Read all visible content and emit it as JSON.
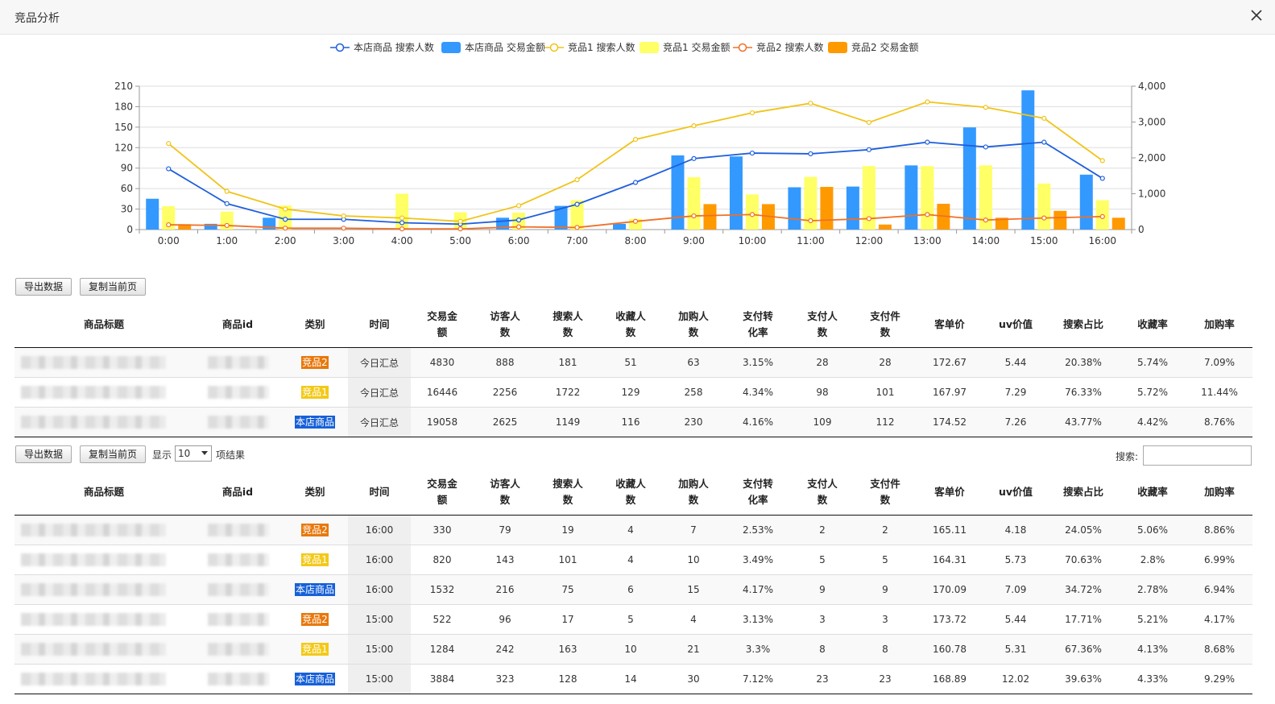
{
  "window": {
    "title": "竞品分析"
  },
  "legend": [
    {
      "label": "本店商品 搜索人数",
      "kind": "line",
      "color": "#1f5fdc"
    },
    {
      "label": "本店商品 交易金额",
      "kind": "bar",
      "color": "#3399ff"
    },
    {
      "label": "竞品1 搜索人数",
      "kind": "line",
      "color": "#f0c419"
    },
    {
      "label": "竞品1 交易金额",
      "kind": "bar",
      "color": "#ffff66"
    },
    {
      "label": "竞品2 搜索人数",
      "kind": "line",
      "color": "#f07028"
    },
    {
      "label": "竞品2 交易金额",
      "kind": "bar",
      "color": "#ff9900"
    }
  ],
  "chart_data": {
    "type": "bar",
    "categories": [
      "0:00",
      "1:00",
      "2:00",
      "3:00",
      "4:00",
      "5:00",
      "6:00",
      "7:00",
      "8:00",
      "9:00",
      "10:00",
      "11:00",
      "12:00",
      "13:00",
      "14:00",
      "15:00",
      "16:00"
    ],
    "left_axis": {
      "ticks": [
        "0",
        "30",
        "60",
        "90",
        "120",
        "150",
        "180",
        "210"
      ],
      "ylim": [
        0,
        210
      ]
    },
    "right_axis": {
      "ticks": [
        "0",
        "1,000",
        "2,000",
        "3,000",
        "4,000"
      ],
      "ylim": [
        0,
        4000
      ]
    },
    "grid": true,
    "legend_position": "top",
    "series": [
      {
        "name": "本店商品 交易金额",
        "kind": "bar",
        "axis": "right",
        "color": "#3399ff",
        "values": [
          860,
          160,
          330,
          0,
          0,
          0,
          330,
          660,
          160,
          2070,
          2040,
          1180,
          1200,
          1790,
          2850,
          3884,
          1532
        ]
      },
      {
        "name": "竞品1 交易金额",
        "kind": "bar",
        "axis": "right",
        "color": "#ffff66",
        "values": [
          650,
          500,
          670,
          0,
          1000,
          480,
          470,
          820,
          300,
          1460,
          980,
          1470,
          1770,
          1770,
          1790,
          1284,
          820
        ]
      },
      {
        "name": "竞品2 交易金额",
        "kind": "bar",
        "axis": "right",
        "color": "#ff9900",
        "values": [
          150,
          0,
          0,
          0,
          0,
          0,
          0,
          0,
          0,
          710,
          710,
          1190,
          140,
          720,
          330,
          522,
          330
        ]
      },
      {
        "name": "本店商品 搜索人数",
        "kind": "line",
        "axis": "left",
        "color": "#1f5fdc",
        "values": [
          89,
          38,
          15,
          15,
          10,
          8,
          14,
          37,
          69,
          104,
          112,
          111,
          117,
          128,
          121,
          128,
          75
        ]
      },
      {
        "name": "竞品1 搜索人数",
        "kind": "line",
        "axis": "left",
        "color": "#f0c419",
        "values": [
          126,
          56,
          30,
          20,
          17,
          12,
          35,
          73,
          132,
          152,
          171,
          185,
          157,
          187,
          179,
          163,
          101
        ]
      },
      {
        "name": "竞品2 搜索人数",
        "kind": "line",
        "axis": "left",
        "color": "#f07028",
        "values": [
          7,
          6,
          2,
          2,
          1,
          1,
          4,
          3,
          12,
          20,
          22,
          13,
          16,
          22,
          14,
          17,
          19
        ]
      }
    ]
  },
  "toolbar1": {
    "export_label": "导出数据",
    "copy_label": "复制当前页"
  },
  "toolbar2": {
    "export_label": "导出数据",
    "copy_label": "复制当前页",
    "show_label": "显示",
    "page_size": "10",
    "results_label": "项结果",
    "search_label": "搜索:"
  },
  "headers": [
    [
      "商品标题"
    ],
    [
      "商品id"
    ],
    [
      "类别"
    ],
    [
      "时间"
    ],
    [
      "交易金",
      "额"
    ],
    [
      "访客人",
      "数"
    ],
    [
      "搜索人",
      "数"
    ],
    [
      "收藏人",
      "数"
    ],
    [
      "加购人",
      "数"
    ],
    [
      "支付转",
      "化率"
    ],
    [
      "支付人",
      "数"
    ],
    [
      "支付件",
      "数"
    ],
    [
      "客单价"
    ],
    [
      "uv价值"
    ],
    [
      "搜索占比"
    ],
    [
      "收藏率"
    ],
    [
      "加购率"
    ]
  ],
  "summary_rows": [
    {
      "category": "竞品2",
      "cat_class": "c2",
      "time": "今日汇总",
      "cells": [
        "4830",
        "888",
        "181",
        "51",
        "63",
        "3.15%",
        "28",
        "28",
        "172.67",
        "5.44",
        "20.38%",
        "5.74%",
        "7.09%"
      ]
    },
    {
      "category": "竞品1",
      "cat_class": "c1",
      "time": "今日汇总",
      "cells": [
        "16446",
        "2256",
        "1722",
        "129",
        "258",
        "4.34%",
        "98",
        "101",
        "167.97",
        "7.29",
        "76.33%",
        "5.72%",
        "11.44%"
      ]
    },
    {
      "category": "本店商品",
      "cat_class": "own",
      "time": "今日汇总",
      "cells": [
        "19058",
        "2625",
        "1149",
        "116",
        "230",
        "4.16%",
        "109",
        "112",
        "174.52",
        "7.26",
        "43.77%",
        "4.42%",
        "8.76%"
      ]
    }
  ],
  "detail_rows": [
    {
      "category": "竞品2",
      "cat_class": "c2",
      "time": "16:00",
      "cells": [
        "330",
        "79",
        "19",
        "4",
        "7",
        "2.53%",
        "2",
        "2",
        "165.11",
        "4.18",
        "24.05%",
        "5.06%",
        "8.86%"
      ]
    },
    {
      "category": "竞品1",
      "cat_class": "c1",
      "time": "16:00",
      "cells": [
        "820",
        "143",
        "101",
        "4",
        "10",
        "3.49%",
        "5",
        "5",
        "164.31",
        "5.73",
        "70.63%",
        "2.8%",
        "6.99%"
      ]
    },
    {
      "category": "本店商品",
      "cat_class": "own",
      "time": "16:00",
      "cells": [
        "1532",
        "216",
        "75",
        "6",
        "15",
        "4.17%",
        "9",
        "9",
        "170.09",
        "7.09",
        "34.72%",
        "2.78%",
        "6.94%"
      ]
    },
    {
      "category": "竞品2",
      "cat_class": "c2",
      "time": "15:00",
      "cells": [
        "522",
        "96",
        "17",
        "5",
        "4",
        "3.13%",
        "3",
        "3",
        "173.72",
        "5.44",
        "17.71%",
        "5.21%",
        "4.17%"
      ]
    },
    {
      "category": "竞品1",
      "cat_class": "c1",
      "time": "15:00",
      "cells": [
        "1284",
        "242",
        "163",
        "10",
        "21",
        "3.3%",
        "8",
        "8",
        "160.78",
        "5.31",
        "67.36%",
        "4.13%",
        "8.68%"
      ]
    },
    {
      "category": "本店商品",
      "cat_class": "own",
      "time": "15:00",
      "cells": [
        "3884",
        "323",
        "128",
        "14",
        "30",
        "7.12%",
        "23",
        "23",
        "168.89",
        "12.02",
        "39.63%",
        "4.33%",
        "9.29%"
      ]
    }
  ]
}
